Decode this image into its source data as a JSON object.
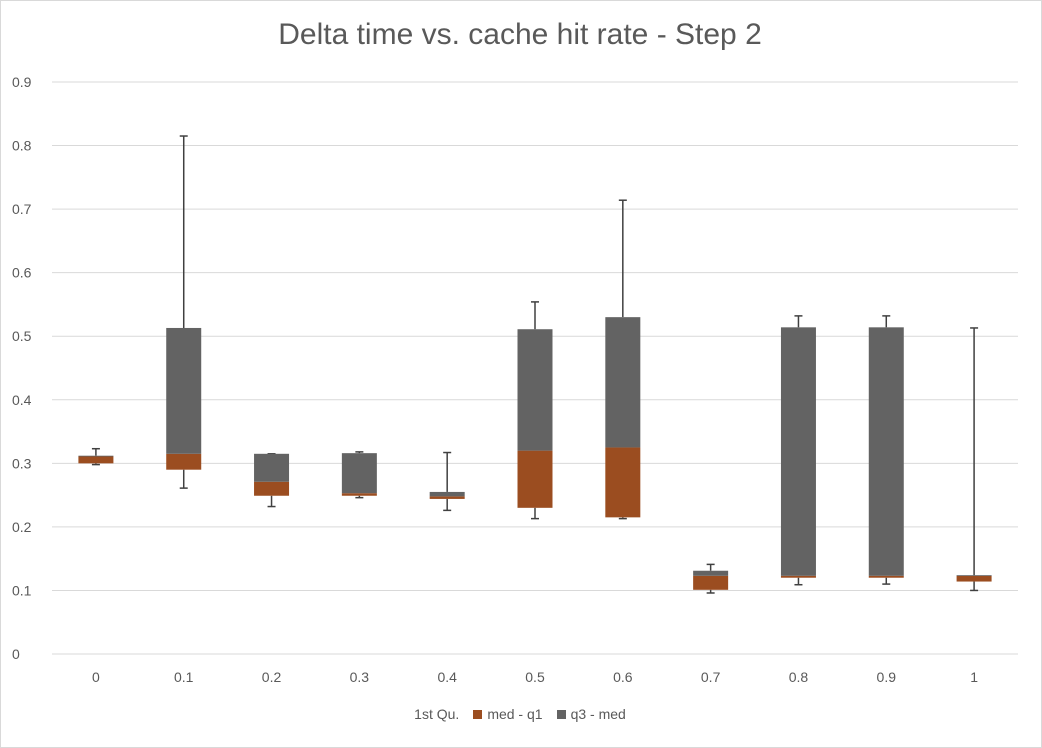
{
  "chart_data": {
    "type": "bar",
    "subtype": "stacked-column-boxplot",
    "title": "Delta time vs. cache hit rate - Step 2",
    "categories": [
      "0",
      "0.1",
      "0.2",
      "0.3",
      "0.4",
      "0.5",
      "0.6",
      "0.7",
      "0.8",
      "0.9",
      "1"
    ],
    "ylim": [
      0,
      0.9
    ],
    "yticks": [
      "0",
      "0.1",
      "0.2",
      "0.3",
      "0.4",
      "0.5",
      "0.6",
      "0.7",
      "0.8",
      "0.9"
    ],
    "grid": true,
    "legend_position": "bottom",
    "series": [
      {
        "name": "1st Qu.",
        "color": "#ffffff",
        "values": [
          0.3,
          0.29,
          0.249,
          0.249,
          0.244,
          0.23,
          0.215,
          0.101,
          0.12,
          0.12,
          0.114
        ]
      },
      {
        "name": "med - q1",
        "color": "#9b4d20",
        "values": [
          0.011,
          0.025,
          0.022,
          0.004,
          0.004,
          0.09,
          0.11,
          0.022,
          0.003,
          0.003,
          0.009
        ]
      },
      {
        "name": "q3 - med",
        "color": "#636363",
        "values": [
          0.001,
          0.198,
          0.044,
          0.063,
          0.007,
          0.191,
          0.205,
          0.008,
          0.391,
          0.391,
          0.001
        ]
      }
    ],
    "whiskers": {
      "color": "#404040",
      "min": [
        0.298,
        0.261,
        0.232,
        0.246,
        0.226,
        0.213,
        0.213,
        0.096,
        0.109,
        0.11,
        0.1
      ],
      "max": [
        0.323,
        0.815,
        0.315,
        0.318,
        0.317,
        0.554,
        0.714,
        0.141,
        0.532,
        0.532,
        0.513
      ]
    }
  }
}
